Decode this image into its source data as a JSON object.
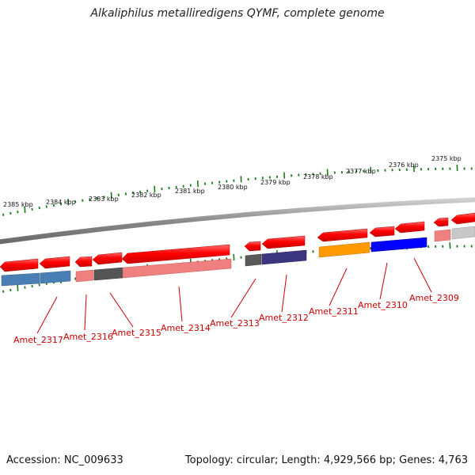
{
  "title": "Alkaliphilus metalliredigens QYMF, complete genome",
  "accession": "Accession: NC_009633",
  "topology": "Topology: circular; Length: 4,929,566 bp; Genes: 4,763",
  "ruler_labels": [
    "2385 kbp",
    "2384 kbp",
    "2383 kbp",
    "2382 kbp",
    "2381 kbp",
    "2380 kbp",
    "2379 kbp",
    "2378 kbp",
    "2377 kbp",
    "2376 kbp",
    "2375 kbp"
  ],
  "genes": [
    "Amet_2317",
    "Amet_2316",
    "Amet_2315",
    "Amet_2314",
    "Amet_2313",
    "Amet_2312",
    "Amet_2311",
    "Amet_2310",
    "Amet_2309"
  ],
  "colors": {
    "gene_red": "#ff0000",
    "tick_green": "#1a7a1a",
    "label_red": "#cc0000",
    "backbone_gray": "#8a8a8a"
  }
}
